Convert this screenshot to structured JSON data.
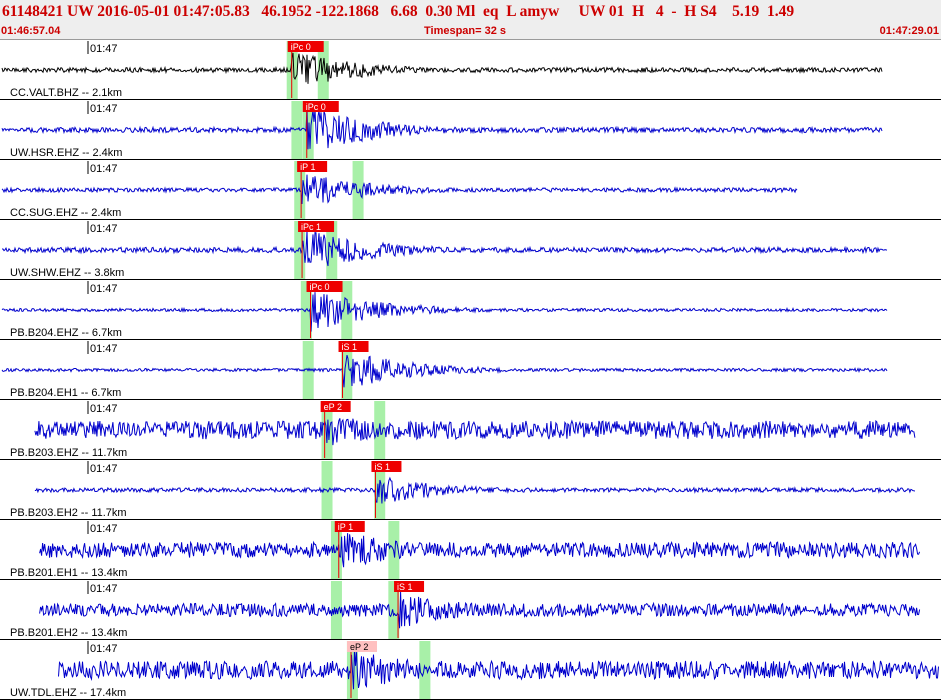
{
  "header": {
    "title": "61148421 UW 2016-05-01 01:47:05.83   46.1952 -122.1868   6.68  0.30 Ml  eq  L amyw     UW 01  H   4  -  H S4    5.19  1.49",
    "start_time": "01:46:57.04",
    "timespan": "Timespan=  32 s",
    "end_time": "01:47:29.01"
  },
  "colors": {
    "header_text": "#cc0000",
    "header_bg": "#eeeeee",
    "trace_blue": "#0000cc",
    "trace_black": "#000000",
    "pick_red": "#ee0000",
    "pick_weak": "#ffc0c0",
    "window_green": "#a8f0a8"
  },
  "traces": [
    {
      "label": "CC.VALT.BHZ -- 2.1km",
      "time": "01:47",
      "color": "black",
      "start": 0.0,
      "end": 0.94,
      "amp": 0.09,
      "burst_amp": 0.75,
      "greens": [
        0.31,
        0.343
      ],
      "picks": [
        {
          "text": "iPc 0",
          "pos": 0.31,
          "weak": false
        }
      ]
    },
    {
      "label": "UW.HSR.EHZ -- 2.4km",
      "time": "01:47",
      "color": "blue",
      "start": 0.0,
      "end": 0.94,
      "amp": 0.1,
      "burst_amp": 0.95,
      "greens": [
        0.315,
        0.327
      ],
      "picks": [
        {
          "text": "iPc 0",
          "pos": 0.326,
          "weak": false
        }
      ]
    },
    {
      "label": "CC.SUG.EHZ -- 2.4km",
      "time": "01:47",
      "color": "blue",
      "start": 0.0,
      "end": 0.85,
      "amp": 0.08,
      "burst_amp": 0.7,
      "greens": [
        0.318,
        0.38
      ],
      "picks": [
        {
          "text": "iP 1",
          "pos": 0.32,
          "weak": false
        }
      ]
    },
    {
      "label": "UW.SHW.EHZ -- 3.8km",
      "time": "01:47",
      "color": "blue",
      "start": 0.0,
      "end": 0.945,
      "amp": 0.1,
      "burst_amp": 0.9,
      "greens": [
        0.318,
        0.352
      ],
      "picks": [
        {
          "text": "iPc 1",
          "pos": 0.321,
          "weak": false
        }
      ]
    },
    {
      "label": "PB.B204.EHZ -- 6.7km",
      "time": "01:47",
      "color": "blue",
      "start": 0.0,
      "end": 0.945,
      "amp": 0.06,
      "burst_amp": 0.85,
      "greens": [
        0.325,
        0.368
      ],
      "picks": [
        {
          "text": "iPc 0",
          "pos": 0.33,
          "weak": false
        }
      ]
    },
    {
      "label": "PB.B204.EH1 -- 6.7km",
      "time": "01:47",
      "color": "blue",
      "start": 0.0,
      "end": 0.945,
      "amp": 0.06,
      "burst_amp": 0.8,
      "greens": [
        0.327,
        0.368
      ],
      "picks": [
        {
          "text": "iS 1",
          "pos": 0.364,
          "weak": false
        }
      ]
    },
    {
      "label": "PB.B203.EHZ -- 11.7km",
      "time": "01:47",
      "color": "blue",
      "start": 0.035,
      "end": 0.975,
      "amp": 0.35,
      "burst_amp": 0.7,
      "greens": [
        0.347,
        0.403
      ],
      "picks": [
        {
          "text": "eP 2",
          "pos": 0.345,
          "weak": false
        }
      ]
    },
    {
      "label": "PB.B203.EH2 -- 11.7km",
      "time": "01:47",
      "color": "blue",
      "start": 0.035,
      "end": 0.975,
      "amp": 0.08,
      "burst_amp": 0.6,
      "greens": [
        0.347,
        0.403
      ],
      "picks": [
        {
          "text": "iS 1",
          "pos": 0.399,
          "weak": false
        }
      ]
    },
    {
      "label": "PB.B201.EH1 -- 13.4km",
      "time": "01:47",
      "color": "blue",
      "start": 0.04,
      "end": 0.98,
      "amp": 0.3,
      "burst_amp": 0.8,
      "greens": [
        0.357,
        0.418
      ],
      "picks": [
        {
          "text": "iP 1",
          "pos": 0.36,
          "weak": false
        }
      ]
    },
    {
      "label": "PB.B201.EH2 -- 13.4km",
      "time": "01:47",
      "color": "blue",
      "start": 0.04,
      "end": 0.98,
      "amp": 0.25,
      "burst_amp": 0.75,
      "greens": [
        0.357,
        0.418
      ],
      "picks": [
        {
          "text": "iS 1",
          "pos": 0.423,
          "weak": false
        }
      ]
    },
    {
      "label": "UW.TDL.EHZ -- 17.4km",
      "time": "01:47",
      "color": "blue",
      "start": 0.06,
      "end": 1.0,
      "amp": 0.35,
      "burst_amp": 0.9,
      "greens": [
        0.374,
        0.451
      ],
      "picks": [
        {
          "text": "eP 2",
          "pos": 0.373,
          "weak": true
        }
      ]
    }
  ]
}
